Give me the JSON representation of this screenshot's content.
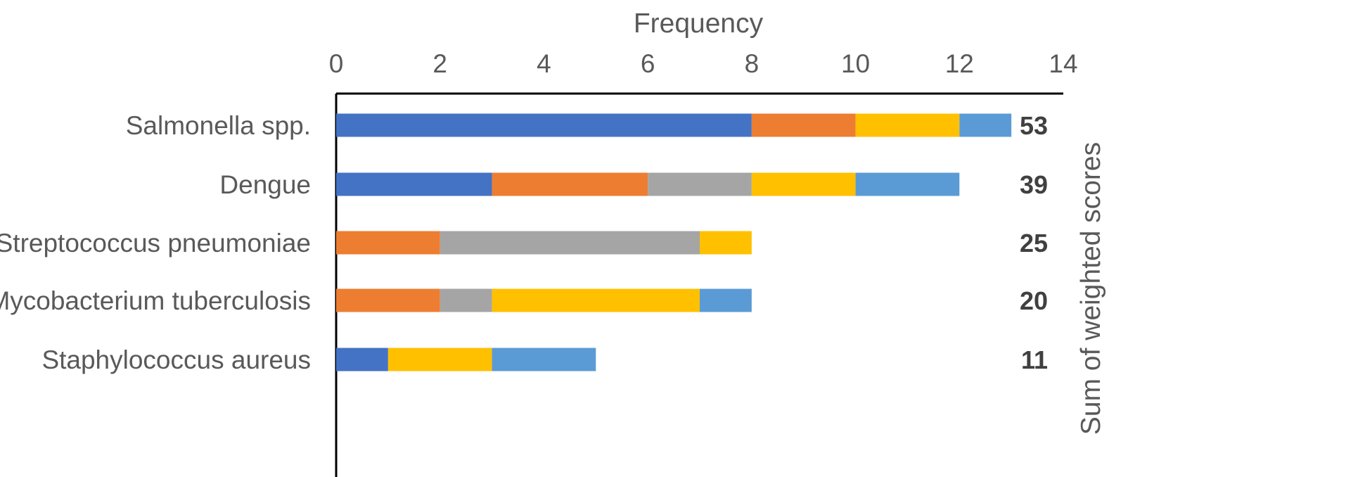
{
  "chart_data": {
    "type": "bar",
    "orientation": "horizontal",
    "stacked": true,
    "xlabel": "Frequency",
    "secondary_label": "Sum of weighted scores",
    "xlim": [
      0,
      14
    ],
    "xticks": [
      0,
      2,
      4,
      6,
      8,
      10,
      12,
      14
    ],
    "xtick_labels": [
      "0",
      "2",
      "4",
      "6",
      "8",
      "10",
      "12",
      "14"
    ],
    "grid": false,
    "legend": "none",
    "categories": [
      "Salmonella spp.",
      "Dengue",
      "Streptococcus pneumoniae",
      "Mycobacterium tuberculosis",
      "Staphylococcus aureus"
    ],
    "series": [
      {
        "color": "#4472C4",
        "values": [
          8,
          3,
          0,
          0,
          1
        ]
      },
      {
        "color": "#ED7D31",
        "values": [
          2,
          3,
          2,
          2,
          0
        ]
      },
      {
        "color": "#A5A5A5",
        "values": [
          0,
          2,
          5,
          1,
          0
        ]
      },
      {
        "color": "#FFC000",
        "values": [
          2,
          2,
          1,
          4,
          2
        ]
      },
      {
        "color": "#5B9BD5",
        "values": [
          1,
          2,
          0,
          1,
          2
        ]
      }
    ],
    "weighted_scores": [
      "53",
      "39",
      "25",
      "20",
      "11"
    ]
  }
}
